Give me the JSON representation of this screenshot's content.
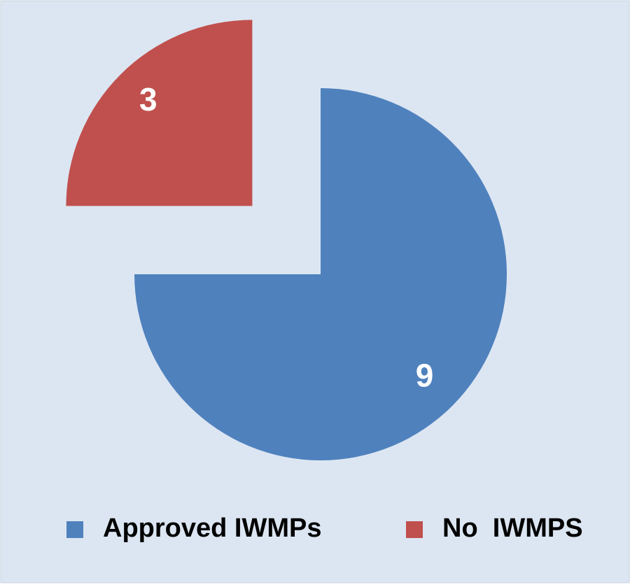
{
  "chart_data": {
    "type": "pie",
    "categories": [
      "Approved IWMPs",
      "No  IWMPS"
    ],
    "values": [
      9,
      3
    ],
    "colors": [
      "#4f81bd",
      "#c0504d"
    ],
    "legend": "bottom"
  }
}
